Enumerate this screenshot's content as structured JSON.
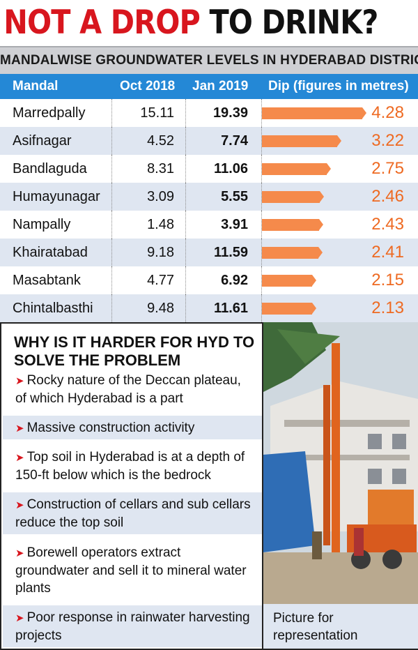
{
  "headline": {
    "part1": "NOT A DROP",
    "part2": "TO DRINK?"
  },
  "chart_data": {
    "type": "table",
    "title": "MANDALWISE GROUNDWATER LEVELS IN HYDERABAD DISTRICT",
    "columns": [
      "Mandal",
      "Oct 2018",
      "Jan 2019",
      "Dip (figures in metres)"
    ],
    "rows": [
      {
        "mandal": "Marredpally",
        "oct": "15.11",
        "jan": "19.39",
        "dip": 4.28
      },
      {
        "mandal": "Asifnagar",
        "oct": "4.52",
        "jan": "7.74",
        "dip": 3.22
      },
      {
        "mandal": "Bandlaguda",
        "oct": "8.31",
        "jan": "11.06",
        "dip": 2.75
      },
      {
        "mandal": "Humayunagar",
        "oct": "3.09",
        "jan": "5.55",
        "dip": 2.46
      },
      {
        "mandal": "Nampally",
        "oct": "1.48",
        "jan": "3.91",
        "dip": 2.43
      },
      {
        "mandal": "Khairatabad",
        "oct": "9.18",
        "jan": "11.59",
        "dip": 2.41
      },
      {
        "mandal": "Masabtank",
        "oct": "4.77",
        "jan": "6.92",
        "dip": 2.15
      },
      {
        "mandal": "Chintalbasthi",
        "oct": "9.48",
        "jan": "11.61",
        "dip": 2.13
      }
    ],
    "bar_series": "Dip (figures in metres)",
    "bar_color": "#f58a4b"
  },
  "why": {
    "title": "WHY IS IT HARDER FOR HYD TO SOLVE THE PROBLEM",
    "items": [
      "Rocky nature of the Deccan plateau, of which Hyderabad is a part",
      "Massive construction activity",
      "Top soil in Hyderabad is at a depth of 150-ft below which is the bedrock",
      "Construction of cellars and sub cellars reduce the top soil",
      "Borewell operators extract groundwater and sell it to mineral water plants",
      "Poor response in rainwater harvesting projects"
    ]
  },
  "photo": {
    "caption": "Picture for representation"
  },
  "colors": {
    "headline_red": "#d8161e",
    "header_blue": "#2488d6",
    "stripe": "#dfe6f1",
    "dip_orange": "#ee6a22"
  }
}
